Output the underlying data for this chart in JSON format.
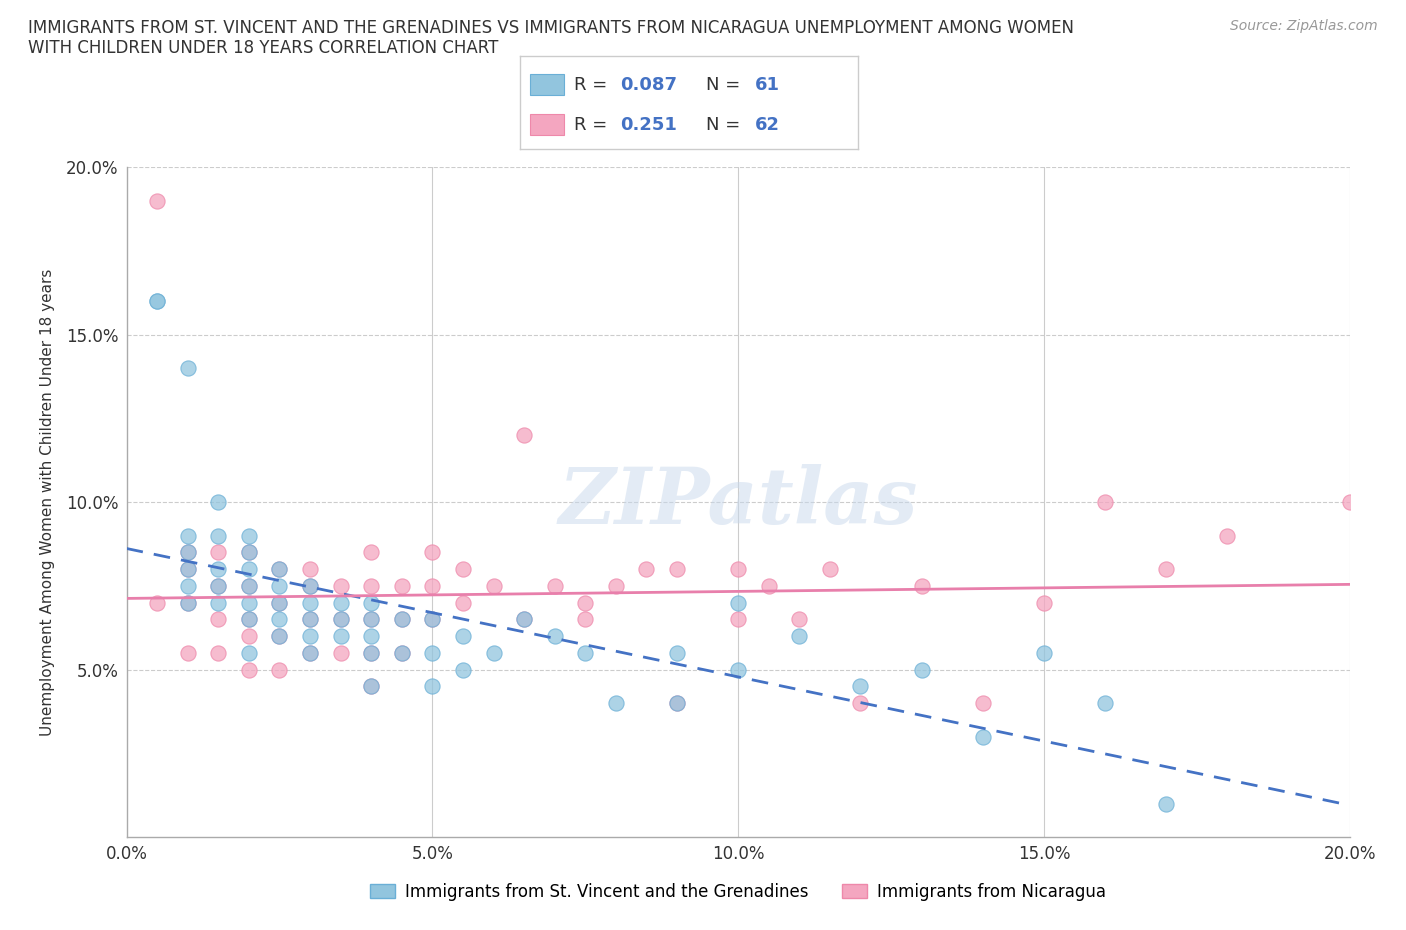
{
  "title": "IMMIGRANTS FROM ST. VINCENT AND THE GRENADINES VS IMMIGRANTS FROM NICARAGUA UNEMPLOYMENT AMONG WOMEN\nWITH CHILDREN UNDER 18 YEARS CORRELATION CHART",
  "source": "Source: ZipAtlas.com",
  "ylabel": "Unemployment Among Women with Children Under 18 years",
  "xlim": [
    0.0,
    0.2
  ],
  "ylim": [
    0.0,
    0.2
  ],
  "watermark": "ZIPatlas",
  "series1_label": "Immigrants from St. Vincent and the Grenadines",
  "series1_color": "#92C5DE",
  "series1_edge": "#6AAFD6",
  "series1_R": 0.087,
  "series1_N": 61,
  "series2_label": "Immigrants from Nicaragua",
  "series2_color": "#F4A6C0",
  "series2_edge": "#EE88AA",
  "series2_R": 0.251,
  "series2_N": 62,
  "trendline1_color": "#4472C4",
  "trendline2_color": "#E87FAB",
  "xtick_labels": [
    "0.0%",
    "5.0%",
    "10.0%",
    "15.0%",
    "20.0%"
  ],
  "xtick_values": [
    0.0,
    0.05,
    0.1,
    0.15,
    0.2
  ],
  "ytick_labels": [
    "5.0%",
    "10.0%",
    "15.0%",
    "20.0%"
  ],
  "ytick_values": [
    0.05,
    0.1,
    0.15,
    0.2
  ],
  "grid_color": "#CCCCCC",
  "background_color": "#FFFFFF",
  "series1_x": [
    0.005,
    0.005,
    0.01,
    0.01,
    0.01,
    0.01,
    0.01,
    0.01,
    0.015,
    0.015,
    0.015,
    0.015,
    0.015,
    0.02,
    0.02,
    0.02,
    0.02,
    0.02,
    0.02,
    0.02,
    0.025,
    0.025,
    0.025,
    0.025,
    0.025,
    0.03,
    0.03,
    0.03,
    0.03,
    0.03,
    0.035,
    0.035,
    0.035,
    0.04,
    0.04,
    0.04,
    0.04,
    0.04,
    0.045,
    0.045,
    0.05,
    0.05,
    0.05,
    0.055,
    0.055,
    0.06,
    0.065,
    0.07,
    0.075,
    0.08,
    0.09,
    0.09,
    0.1,
    0.1,
    0.11,
    0.12,
    0.13,
    0.14,
    0.15,
    0.16,
    0.17
  ],
  "series1_y": [
    0.16,
    0.16,
    0.14,
    0.09,
    0.085,
    0.08,
    0.075,
    0.07,
    0.1,
    0.09,
    0.08,
    0.075,
    0.07,
    0.09,
    0.085,
    0.08,
    0.075,
    0.07,
    0.065,
    0.055,
    0.08,
    0.075,
    0.07,
    0.065,
    0.06,
    0.075,
    0.07,
    0.065,
    0.06,
    0.055,
    0.07,
    0.065,
    0.06,
    0.07,
    0.065,
    0.06,
    0.055,
    0.045,
    0.065,
    0.055,
    0.065,
    0.055,
    0.045,
    0.06,
    0.05,
    0.055,
    0.065,
    0.06,
    0.055,
    0.04,
    0.055,
    0.04,
    0.07,
    0.05,
    0.06,
    0.045,
    0.05,
    0.03,
    0.055,
    0.04,
    0.01
  ],
  "series2_x": [
    0.005,
    0.005,
    0.01,
    0.01,
    0.01,
    0.01,
    0.015,
    0.015,
    0.015,
    0.015,
    0.02,
    0.02,
    0.02,
    0.02,
    0.02,
    0.025,
    0.025,
    0.025,
    0.025,
    0.03,
    0.03,
    0.03,
    0.03,
    0.035,
    0.035,
    0.035,
    0.04,
    0.04,
    0.04,
    0.04,
    0.04,
    0.045,
    0.045,
    0.045,
    0.05,
    0.05,
    0.05,
    0.055,
    0.055,
    0.06,
    0.065,
    0.065,
    0.07,
    0.075,
    0.075,
    0.08,
    0.085,
    0.09,
    0.09,
    0.1,
    0.1,
    0.105,
    0.11,
    0.115,
    0.12,
    0.13,
    0.14,
    0.15,
    0.16,
    0.17,
    0.18,
    0.2
  ],
  "series2_y": [
    0.19,
    0.07,
    0.085,
    0.08,
    0.07,
    0.055,
    0.085,
    0.075,
    0.065,
    0.055,
    0.085,
    0.075,
    0.065,
    0.06,
    0.05,
    0.08,
    0.07,
    0.06,
    0.05,
    0.08,
    0.075,
    0.065,
    0.055,
    0.075,
    0.065,
    0.055,
    0.085,
    0.075,
    0.065,
    0.055,
    0.045,
    0.075,
    0.065,
    0.055,
    0.085,
    0.075,
    0.065,
    0.08,
    0.07,
    0.075,
    0.065,
    0.12,
    0.075,
    0.07,
    0.065,
    0.075,
    0.08,
    0.08,
    0.04,
    0.08,
    0.065,
    0.075,
    0.065,
    0.08,
    0.04,
    0.075,
    0.04,
    0.07,
    0.1,
    0.08,
    0.09,
    0.1
  ]
}
